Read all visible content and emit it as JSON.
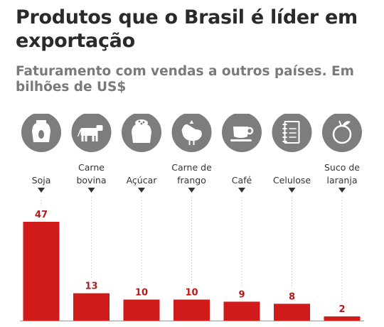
{
  "title": "Produtos que o Brasil é líder em exportação",
  "subtitle": "Faturamento com vendas a outros países. Em bilhões de US$",
  "colors": {
    "bar": "#d11b1b",
    "icon_bg": "#7d7d7d",
    "accent": "#b81818"
  },
  "chart_data": {
    "type": "bar",
    "title": "Produtos que o Brasil é líder em exportação",
    "subtitle": "Faturamento com vendas a outros países. Em bilhões de US$",
    "categories": [
      "Soja",
      "Carne bovina",
      "Açúcar",
      "Carne de frango",
      "Café",
      "Celulose",
      "Suco de laranja"
    ],
    "category_lines": [
      [
        "Soja"
      ],
      [
        "Carne",
        "bovina"
      ],
      [
        "Açúcar"
      ],
      [
        "Carne de",
        "frango"
      ],
      [
        "Café"
      ],
      [
        "Celulose"
      ],
      [
        "Suco de",
        "laranja"
      ]
    ],
    "values": [
      47,
      13,
      10,
      10,
      9,
      8,
      2
    ],
    "icons": [
      "soy-sack-icon",
      "cow-icon",
      "sugar-sack-icon",
      "chicken-icon",
      "coffee-cup-icon",
      "notebook-icon",
      "orange-icon"
    ],
    "ylim": [
      0,
      47
    ],
    "grid": false
  }
}
